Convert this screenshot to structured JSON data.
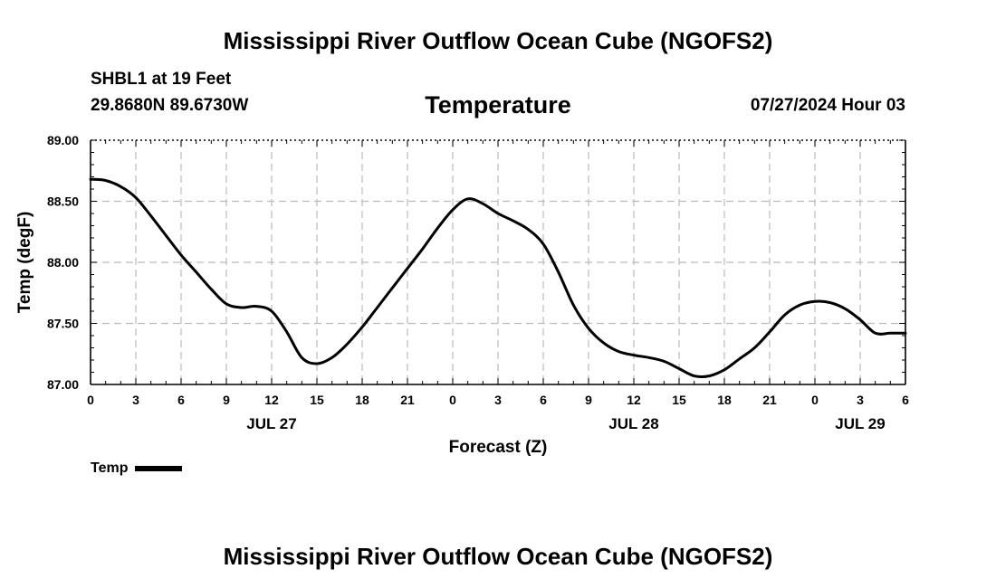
{
  "page_title": "Mississippi River Outflow Ocean Cube (NGOFS2)",
  "station_label": "SHBL1 at 19 Feet",
  "coordinates": "29.8680N  89.6730W",
  "variable_title": "Temperature",
  "datetime_label": "07/27/2024 Hour 03",
  "legend": {
    "label": "Temp",
    "color": "#000000"
  },
  "bottom_title": "Mississippi River Outflow Ocean Cube (NGOFS2)",
  "chart_data": {
    "type": "line",
    "title": "Temperature",
    "xlabel": "Forecast (Z)",
    "ylabel": "Temp (degF)",
    "xlim": [
      0,
      54
    ],
    "ylim": [
      87.0,
      89.0
    ],
    "yticks": [
      87.0,
      87.5,
      88.0,
      88.5,
      89.0
    ],
    "ytick_labels": [
      "87.00",
      "87.50",
      "88.00",
      "88.50",
      "89.00"
    ],
    "xticks": [
      0,
      3,
      6,
      9,
      12,
      15,
      18,
      21,
      24,
      27,
      30,
      33,
      36,
      39,
      42,
      45,
      48,
      51,
      54
    ],
    "xtick_labels": [
      "0",
      "3",
      "6",
      "9",
      "12",
      "15",
      "18",
      "21",
      "0",
      "3",
      "6",
      "9",
      "12",
      "15",
      "18",
      "21",
      "0",
      "3",
      "6"
    ],
    "day_labels": [
      {
        "x": 12,
        "label": "JUL 27"
      },
      {
        "x": 36,
        "label": "JUL 28"
      },
      {
        "x": 51,
        "label": "JUL 29"
      }
    ],
    "grid": true,
    "series": [
      {
        "name": "Temp",
        "color": "#000000",
        "x": [
          0,
          1,
          2,
          3,
          4,
          5,
          6,
          7,
          8,
          9,
          10,
          11,
          12,
          13,
          14,
          15,
          16,
          17,
          18,
          19,
          20,
          21,
          22,
          23,
          24,
          25,
          26,
          27,
          28,
          29,
          30,
          31,
          32,
          33,
          34,
          35,
          36,
          37,
          38,
          39,
          40,
          41,
          42,
          43,
          44,
          45,
          46,
          47,
          48,
          49,
          50,
          51,
          52,
          53,
          54
        ],
        "values": [
          88.68,
          88.67,
          88.62,
          88.53,
          88.38,
          88.22,
          88.06,
          87.92,
          87.78,
          87.66,
          87.63,
          87.64,
          87.6,
          87.43,
          87.22,
          87.17,
          87.22,
          87.33,
          87.47,
          87.63,
          87.79,
          87.95,
          88.11,
          88.28,
          88.43,
          88.52,
          88.48,
          88.4,
          88.34,
          88.27,
          88.15,
          87.92,
          87.65,
          87.46,
          87.34,
          87.27,
          87.24,
          87.22,
          87.19,
          87.13,
          87.07,
          87.07,
          87.12,
          87.21,
          87.3,
          87.43,
          87.57,
          87.65,
          87.68,
          87.67,
          87.62,
          87.53,
          87.42,
          87.42,
          87.42
        ]
      }
    ]
  }
}
